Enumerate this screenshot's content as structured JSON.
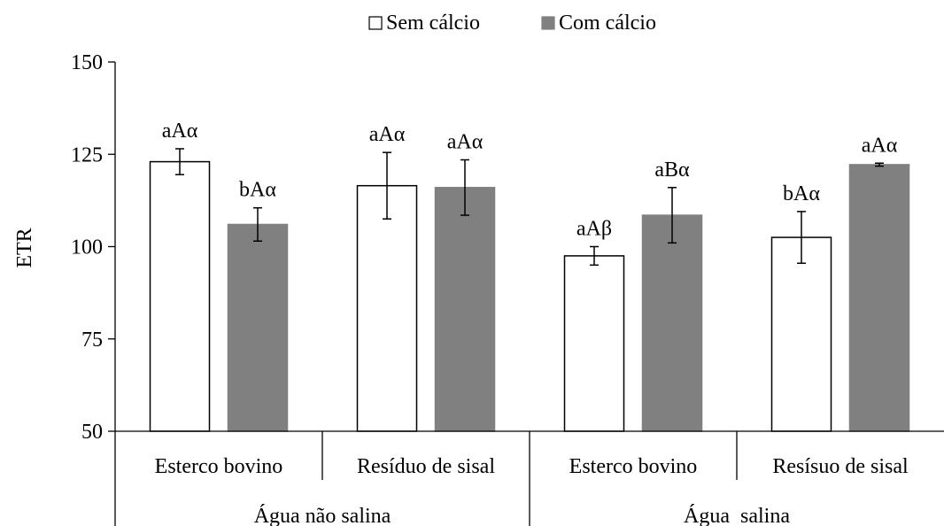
{
  "chart_data": {
    "type": "bar",
    "title": "",
    "xlabel": "",
    "ylabel": "ETR",
    "ylim": [
      50,
      150
    ],
    "yticks": [
      50,
      75,
      100,
      125,
      150
    ],
    "grid": false,
    "legend_position": "top-center",
    "categories": [
      "Esterco bovino",
      "Resíduo de sisal",
      "Esterco bovino",
      "Resísuo de sisal"
    ],
    "groups": [
      {
        "label": "Água não salina",
        "categories": [
          0,
          1
        ]
      },
      {
        "label": "Água  salina",
        "categories": [
          2,
          3
        ]
      }
    ],
    "series": [
      {
        "name": "Sem cálcio",
        "color": "#ffffff",
        "stroke": "#000000",
        "values": [
          123,
          116.5,
          97.5,
          102.5
        ],
        "errors": [
          3.5,
          9,
          2.5,
          7
        ],
        "labels": [
          "aAα",
          "aAα",
          "aAβ",
          "bAα"
        ]
      },
      {
        "name": "Com cálcio",
        "color": "#808080",
        "stroke": "#808080",
        "values": [
          106,
          116,
          108.5,
          122.2
        ],
        "errors": [
          4.5,
          7.5,
          7.5,
          0.4
        ],
        "labels": [
          "bAα",
          "aAα",
          "aBα",
          "aAα"
        ]
      }
    ]
  }
}
